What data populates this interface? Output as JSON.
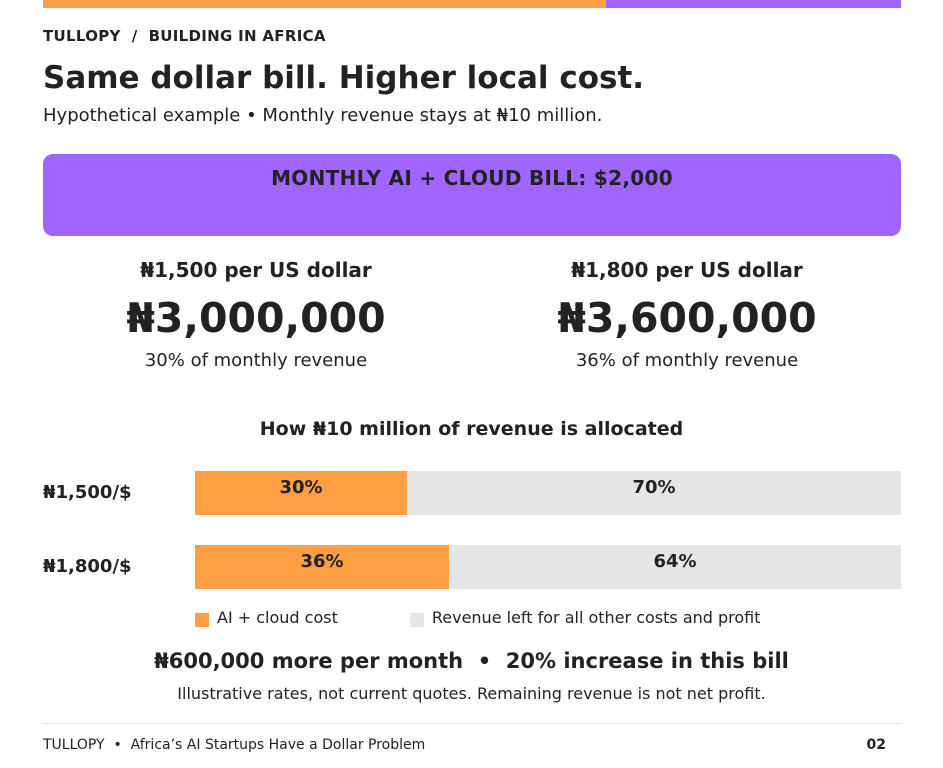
{
  "colors": {
    "orange": "#ff9f43",
    "purple": "#a064ff",
    "gray": "#e6e6e6",
    "text": "#222222"
  },
  "header": {
    "breadcrumb": "TULLOPY  /  BUILDING IN AFRICA",
    "title": "Same dollar bill. Higher local cost.",
    "subtitle": "Hypothetical example • Monthly revenue stays at ₦10 million."
  },
  "banner": {
    "text": "MONTHLY AI + CLOUD BILL: $2,000"
  },
  "comparison": [
    {
      "rate": "₦1,500 per US dollar",
      "amount": "₦3,000,000",
      "share": "30% of monthly revenue"
    },
    {
      "rate": "₦1,800 per US dollar",
      "amount": "₦3,600,000",
      "share": "36% of monthly revenue"
    }
  ],
  "chart_data": {
    "type": "bar",
    "stacked": true,
    "orientation": "horizontal",
    "title": "How ₦10 million of revenue is allocated",
    "categories": [
      "₦1,500/$",
      "₦1,800/$"
    ],
    "series": [
      {
        "name": "AI + cloud cost",
        "values": [
          30,
          36
        ],
        "labels": [
          "30%",
          "36%"
        ],
        "color": "#ff9f43"
      },
      {
        "name": "Revenue left for all other costs and profit",
        "values": [
          70,
          64
        ],
        "labels": [
          "70%",
          "64%"
        ],
        "color": "#e6e6e6"
      }
    ],
    "xlim": [
      0,
      100
    ],
    "grid": false,
    "legend": "bottom-left"
  },
  "summary": {
    "headline": "₦600,000 more per month  •  20% increase in this bill",
    "note": "Illustrative rates, not current quotes. Remaining revenue is not net profit."
  },
  "footer": {
    "left": "TULLOPY  •  Africa’s AI Startups Have a Dollar Problem",
    "page": "02"
  }
}
